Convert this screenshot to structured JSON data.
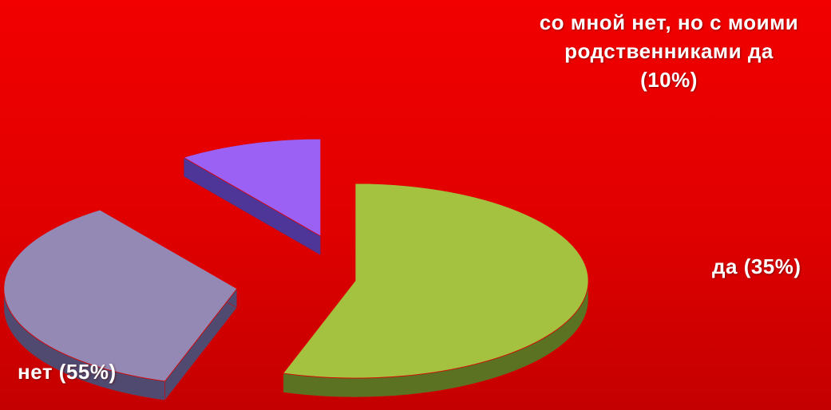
{
  "chart_data": {
    "type": "pie",
    "style": "3d-exploded",
    "slices": [
      {
        "label": "нет (55%)",
        "value": 55,
        "color": "#a4c13f",
        "side_color": "#5a7222"
      },
      {
        "label": "да (35%)",
        "value": 35,
        "color": "#9389b4",
        "side_color": "#504a70"
      },
      {
        "label": "со мной нет, но с моими родственниками да (10%)",
        "value": 10,
        "color": "#9b61f5",
        "side_color": "#4e3598"
      }
    ]
  }
}
